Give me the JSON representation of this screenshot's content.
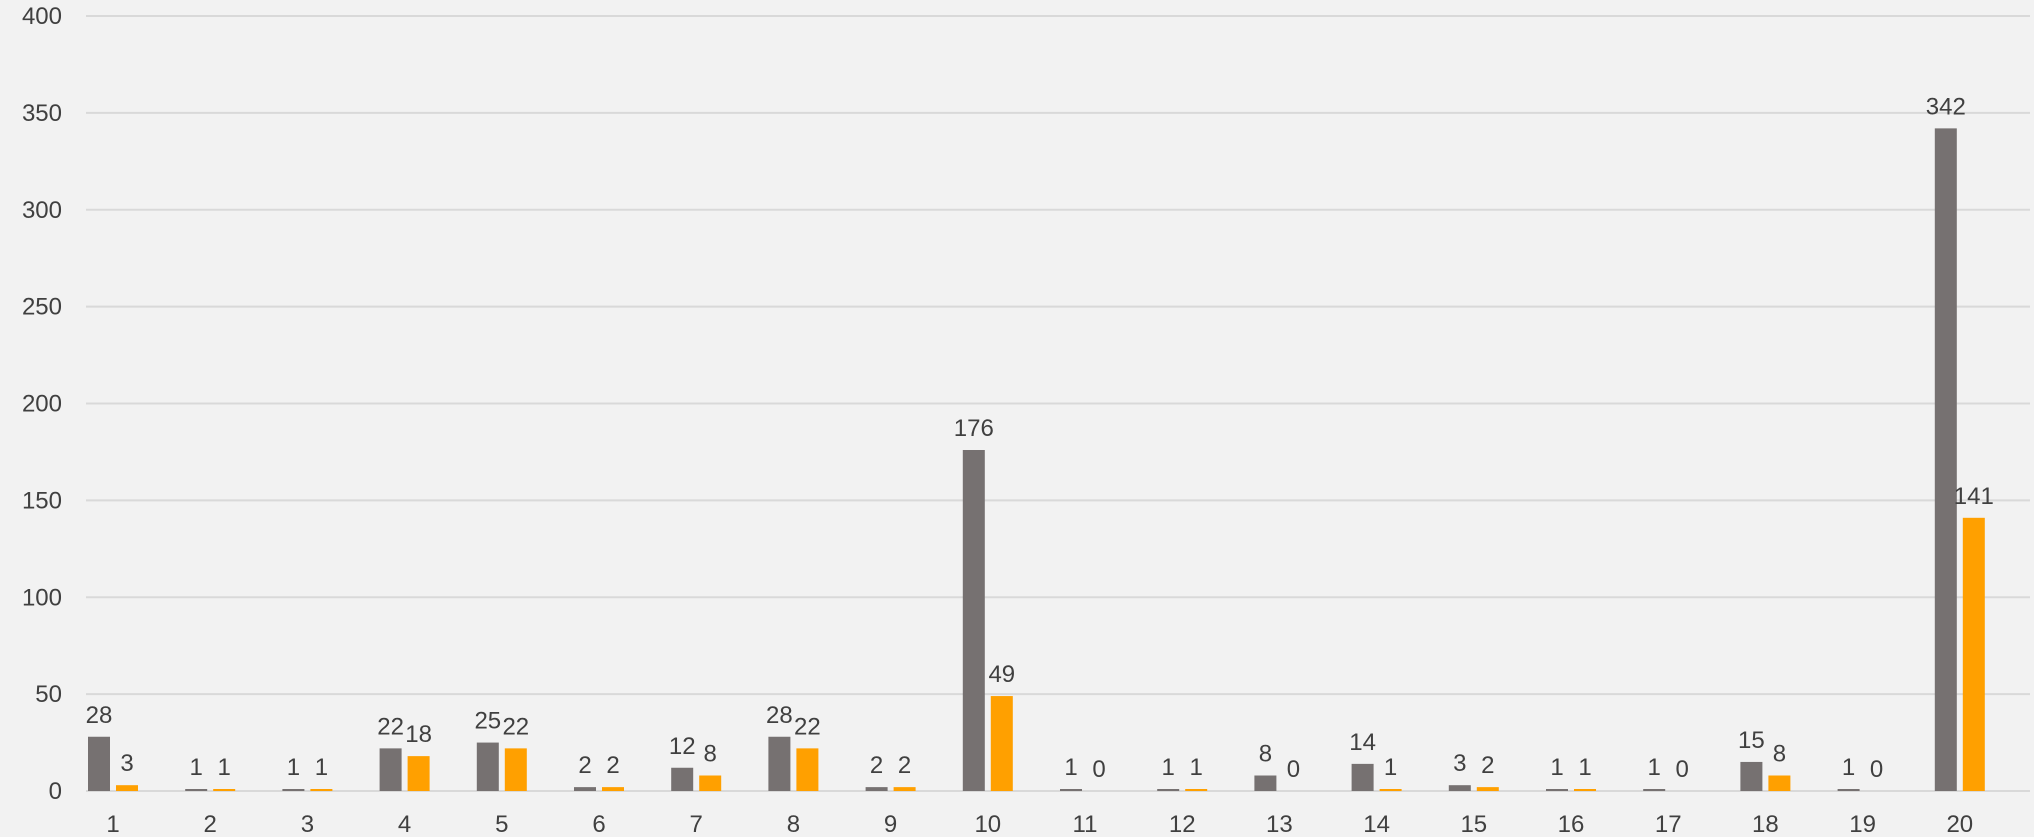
{
  "chart_data": {
    "type": "bar",
    "title": "",
    "xlabel": "",
    "ylabel": "",
    "ylim": [
      0,
      400
    ],
    "yticks": [
      0,
      50,
      100,
      150,
      200,
      250,
      300,
      350,
      400
    ],
    "grid": true,
    "legend": "none",
    "categories": [
      "1",
      "2",
      "3",
      "4",
      "5",
      "6",
      "7",
      "8",
      "9",
      "10",
      "11",
      "12",
      "13",
      "14",
      "15",
      "16",
      "17",
      "18",
      "19",
      "20"
    ],
    "series": [
      {
        "color": "#767171",
        "values": [
          28,
          1,
          1,
          22,
          25,
          2,
          12,
          28,
          2,
          176,
          1,
          1,
          8,
          14,
          3,
          1,
          1,
          15,
          1,
          342
        ]
      },
      {
        "color": "#ffa000",
        "values": [
          3,
          1,
          1,
          18,
          22,
          2,
          8,
          22,
          2,
          49,
          0,
          1,
          0,
          1,
          2,
          1,
          0,
          8,
          0,
          141
        ]
      }
    ]
  }
}
